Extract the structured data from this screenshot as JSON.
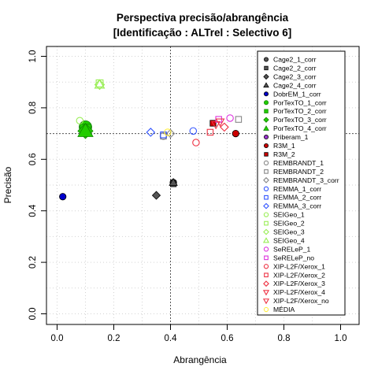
{
  "chart_data": {
    "type": "scatter",
    "title": [
      "Perspectiva precisão/abrangência",
      "[Identificação : ALTrel : Selectivo 6]"
    ],
    "xlabel": "Abrangência",
    "ylabel": "Precisão",
    "xlim": [
      0,
      1
    ],
    "ylim": [
      0,
      1
    ],
    "x_ticks": [
      "0.0",
      "0.2",
      "0.4",
      "0.6",
      "0.8",
      "1.0"
    ],
    "y_ticks": [
      "0.0",
      "0.2",
      "0.4",
      "0.6",
      "0.8",
      "1.0"
    ],
    "grid": true,
    "legend_position": "right",
    "reference_lines": {
      "x": 0.4,
      "y": 0.7
    },
    "series": [
      {
        "name": "Cage2_1_corr",
        "color": "#555555",
        "shape": "circle",
        "filled": true,
        "points": [
          [
            0.41,
            0.51
          ]
        ]
      },
      {
        "name": "Cage2_2_corr",
        "color": "#555555",
        "shape": "square",
        "filled": true,
        "points": [
          [
            0.41,
            0.505
          ]
        ]
      },
      {
        "name": "Cage2_3_corr",
        "color": "#555555",
        "shape": "diamond",
        "filled": true,
        "points": [
          [
            0.35,
            0.46
          ]
        ]
      },
      {
        "name": "Cage2_4_corr",
        "color": "#555555",
        "shape": "triangle",
        "filled": true,
        "points": [
          [
            0.41,
            0.51
          ]
        ]
      },
      {
        "name": "DobrEM_1_corr",
        "color": "#0000cc",
        "shape": "circle",
        "filled": true,
        "points": [
          [
            0.02,
            0.455
          ]
        ]
      },
      {
        "name": "PorTexTO_1_corr",
        "color": "#22cc00",
        "shape": "circle",
        "filled": true,
        "points": [
          [
            0.1,
            0.725
          ]
        ]
      },
      {
        "name": "PorTexTO_2_corr",
        "color": "#22cc00",
        "shape": "square",
        "filled": true,
        "points": [
          [
            0.1,
            0.715
          ]
        ]
      },
      {
        "name": "PorTexTO_3_corr",
        "color": "#22cc00",
        "shape": "diamond",
        "filled": true,
        "points": [
          [
            0.1,
            0.71
          ]
        ]
      },
      {
        "name": "PorTexTO_4_corr",
        "color": "#22cc00",
        "shape": "triangle",
        "filled": true,
        "points": [
          [
            0.1,
            0.71
          ]
        ]
      },
      {
        "name": "Priberam_1",
        "color": "#9933cc",
        "shape": "circle",
        "filled": true,
        "points": []
      },
      {
        "name": "R3M_1",
        "color": "#cc0000",
        "shape": "circle",
        "filled": true,
        "points": [
          [
            0.63,
            0.7
          ]
        ]
      },
      {
        "name": "R3M_2",
        "color": "#cc0000",
        "shape": "square",
        "filled": true,
        "points": [
          [
            0.55,
            0.74
          ]
        ]
      },
      {
        "name": "REMBRANDT_1",
        "color": "#888888",
        "shape": "circle",
        "filled": false,
        "points": [
          [
            0.375,
            0.69
          ]
        ]
      },
      {
        "name": "REMBRANDT_2",
        "color": "#888888",
        "shape": "square",
        "filled": false,
        "points": [
          [
            0.375,
            0.69
          ],
          [
            0.64,
            0.755
          ]
        ]
      },
      {
        "name": "REMBRANDT_3_corr",
        "color": "#888888",
        "shape": "diamond",
        "filled": false,
        "points": [
          [
            0.4,
            0.7
          ]
        ]
      },
      {
        "name": "REMMA_1_corr",
        "color": "#3355ff",
        "shape": "circle",
        "filled": false,
        "points": [
          [
            0.48,
            0.71
          ]
        ]
      },
      {
        "name": "REMMA_2_corr",
        "color": "#3355ff",
        "shape": "square",
        "filled": false,
        "points": [
          [
            0.375,
            0.695
          ]
        ]
      },
      {
        "name": "REMMA_3_corr",
        "color": "#3355ff",
        "shape": "diamond",
        "filled": false,
        "points": [
          [
            0.33,
            0.705
          ]
        ]
      },
      {
        "name": "SEIGeo_1",
        "color": "#99ee55",
        "shape": "circle",
        "filled": false,
        "points": [
          [
            0.08,
            0.75
          ]
        ]
      },
      {
        "name": "SEIGeo_2",
        "color": "#99ee55",
        "shape": "square",
        "filled": false,
        "points": [
          [
            0.15,
            0.895
          ]
        ]
      },
      {
        "name": "SEIGeo_3",
        "color": "#99ee55",
        "shape": "diamond",
        "filled": false,
        "points": [
          [
            0.15,
            0.89
          ]
        ]
      },
      {
        "name": "SEIGeo_4",
        "color": "#99ee55",
        "shape": "triangle",
        "filled": false,
        "points": [
          [
            0.15,
            0.89
          ]
        ]
      },
      {
        "name": "SeRELeP_1",
        "color": "#dd33dd",
        "shape": "circle",
        "filled": false,
        "points": [
          [
            0.61,
            0.76
          ]
        ]
      },
      {
        "name": "SeRELeP_no",
        "color": "#dd33dd",
        "shape": "square",
        "filled": false,
        "points": [
          [
            0.57,
            0.755
          ]
        ]
      },
      {
        "name": "XIP-L2F/Xerox_1",
        "color": "#ee3344",
        "shape": "circle",
        "filled": false,
        "points": [
          [
            0.49,
            0.665
          ]
        ]
      },
      {
        "name": "XIP-L2F/Xerox_2",
        "color": "#ee3344",
        "shape": "square",
        "filled": false,
        "points": [
          [
            0.54,
            0.705
          ]
        ]
      },
      {
        "name": "XIP-L2F/Xerox_3",
        "color": "#ee3344",
        "shape": "diamond",
        "filled": false,
        "points": [
          [
            0.59,
            0.725
          ]
        ]
      },
      {
        "name": "XIP-L2F/Xerox_4",
        "color": "#ee3344",
        "shape": "triangle-down",
        "filled": false,
        "points": [
          [
            0.56,
            0.735
          ]
        ]
      },
      {
        "name": "XIP-L2F/Xerox_no",
        "color": "#ee3344",
        "shape": "triangle-down",
        "filled": false,
        "points": [
          [
            0.575,
            0.745
          ]
        ]
      },
      {
        "name": "MÉDIA",
        "color": "#ffee44",
        "shape": "circle",
        "filled": false,
        "points": [
          [
            0.39,
            0.705
          ]
        ]
      }
    ]
  }
}
